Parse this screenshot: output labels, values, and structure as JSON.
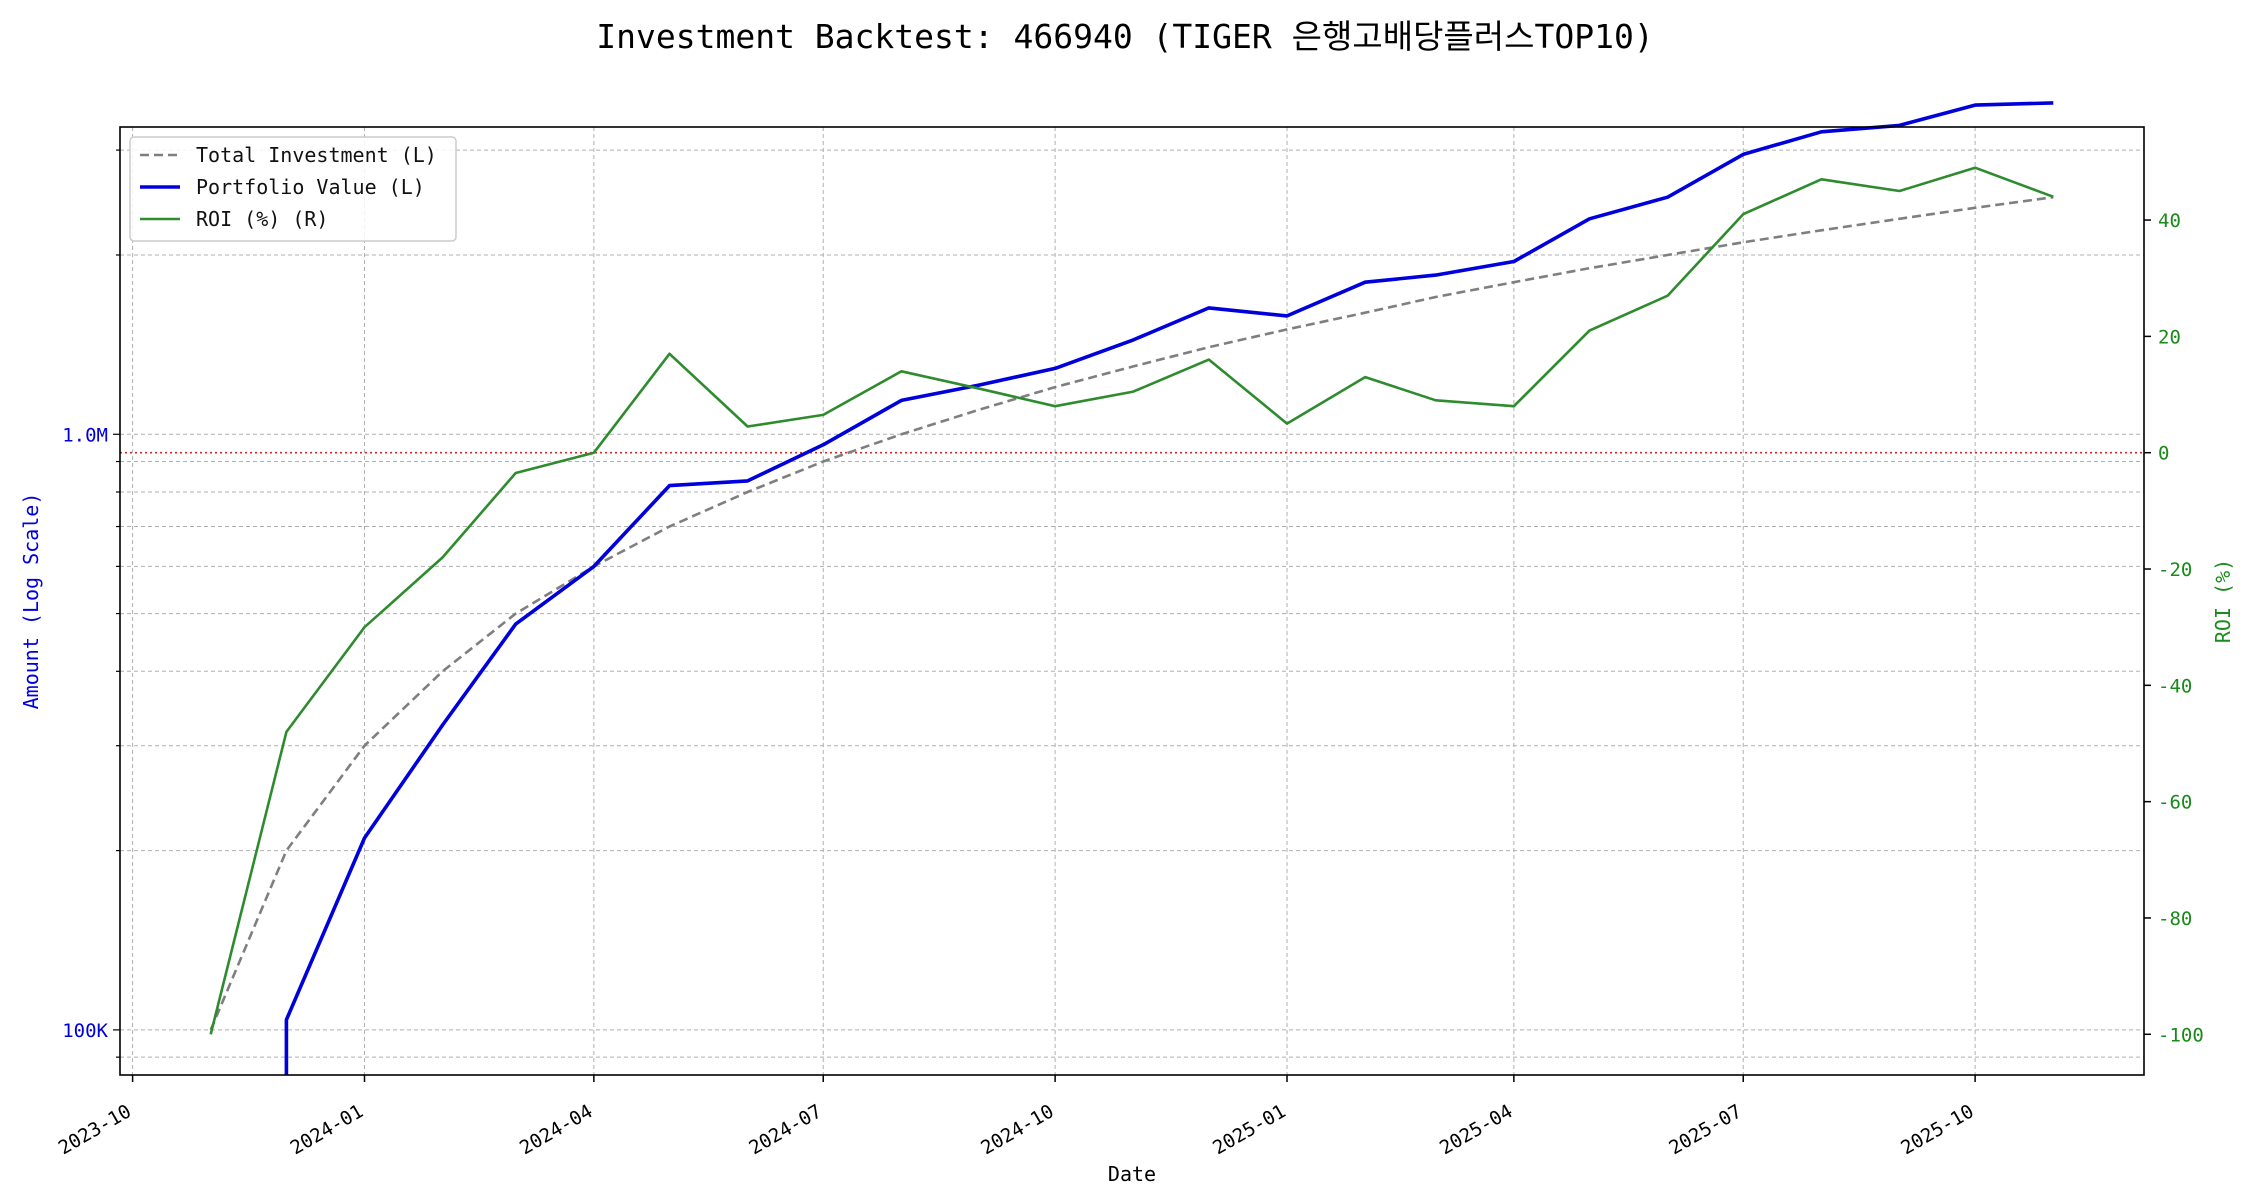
{
  "chart_data": {
    "type": "line",
    "title": "Investment Backtest: 466940 (TIGER 은행고배당플러스TOP10)",
    "xlabel": "Date",
    "ylabel_left": "Amount (Log Scale)",
    "ylabel_right": "ROI (%)",
    "x_range": [
      "2023-09-26",
      "2025-12-07"
    ],
    "x_ticks": [
      "2023-10",
      "2024-01",
      "2024-04",
      "2024-07",
      "2024-10",
      "2025-01",
      "2025-04",
      "2025-07",
      "2025-10"
    ],
    "y_left_scale": "log",
    "y_left_range": [
      84000,
      3280000
    ],
    "y_left_ticks": [
      {
        "value": 100000,
        "label": "100K"
      },
      {
        "value": 1000000,
        "label": "1.0M"
      }
    ],
    "y_right_range": [
      -107,
      56
    ],
    "y_right_ticks": [
      -100,
      -80,
      -60,
      -40,
      -20,
      0,
      20,
      40
    ],
    "grid": true,
    "legend_position": "top-left",
    "reference_line": {
      "axis": "right",
      "value": 0,
      "color": "#d62728",
      "style": "dotted"
    },
    "colors": {
      "total": "#7f7f7f",
      "portfolio": "#0000dd",
      "roi": "#2e8b2e",
      "left_axis": "#0000dd",
      "right_axis": "#1a8a1a"
    },
    "dates": [
      "2023-11-01",
      "2023-12-01",
      "2024-01-01",
      "2024-02-01",
      "2024-03-01",
      "2024-04-01",
      "2024-05-01",
      "2024-06-01",
      "2024-07-01",
      "2024-08-01",
      "2024-09-01",
      "2024-10-01",
      "2024-11-01",
      "2024-12-01",
      "2025-01-01",
      "2025-02-01",
      "2025-03-01",
      "2025-04-01",
      "2025-05-01",
      "2025-06-01",
      "2025-07-01",
      "2025-08-01",
      "2025-09-01",
      "2025-10-01",
      "2025-11-01"
    ],
    "series": [
      {
        "name": "Total Investment (L)",
        "axis": "left",
        "style": "dashed",
        "values": [
          100000,
          200000,
          300000,
          400000,
          500000,
          600000,
          700000,
          800000,
          900000,
          1000000,
          1100000,
          1200000,
          1300000,
          1400000,
          1500000,
          1600000,
          1700000,
          1800000,
          1900000,
          2000000,
          2100000,
          2200000,
          2300000,
          2400000,
          2500000
        ]
      },
      {
        "name": "Portfolio Value (L)",
        "axis": "left",
        "style": "solid",
        "values": [
          null,
          104000,
          210000,
          325000,
          480000,
          600000,
          820000,
          835000,
          960000,
          1140000,
          1210000,
          1290000,
          1440000,
          1630000,
          1580000,
          1800000,
          1850000,
          1950000,
          2300000,
          2500000,
          2950000,
          3220000,
          3300000,
          3570000,
          3600000
        ]
      },
      {
        "name": "ROI (%) (R)",
        "axis": "right",
        "style": "solid",
        "values": [
          -100,
          -48,
          -30,
          -18,
          -3.5,
          0,
          17,
          4.5,
          6.5,
          14,
          11,
          8,
          10.5,
          16,
          5,
          13,
          9,
          8,
          21,
          27,
          41,
          47,
          45,
          49,
          44
        ]
      }
    ]
  }
}
